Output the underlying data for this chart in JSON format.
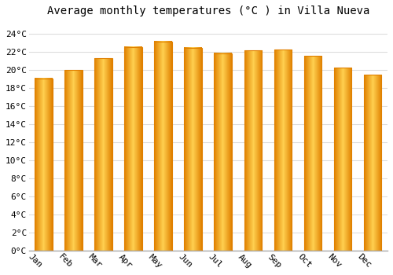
{
  "title": "Average monthly temperatures (°C ) in Villa Nueva",
  "months": [
    "Jan",
    "Feb",
    "Mar",
    "Apr",
    "May",
    "Jun",
    "Jul",
    "Aug",
    "Sep",
    "Oct",
    "Nov",
    "Dec"
  ],
  "values": [
    19.1,
    20.0,
    21.3,
    22.6,
    23.2,
    22.5,
    21.9,
    22.2,
    22.3,
    21.6,
    20.3,
    19.5
  ],
  "bar_color_center": "#FFD050",
  "bar_color_edge": "#E08000",
  "background_color": "#ffffff",
  "grid_color": "#dddddd",
  "ytick_labels": [
    "0°C",
    "2°C",
    "4°C",
    "6°C",
    "8°C",
    "10°C",
    "12°C",
    "14°C",
    "16°C",
    "18°C",
    "20°C",
    "22°C",
    "24°C"
  ],
  "ytick_values": [
    0,
    2,
    4,
    6,
    8,
    10,
    12,
    14,
    16,
    18,
    20,
    22,
    24
  ],
  "ylim": [
    0,
    25.5
  ],
  "title_fontsize": 10,
  "tick_fontsize": 8,
  "font_family": "monospace",
  "bar_width": 0.6,
  "figsize": [
    5.0,
    3.5
  ],
  "dpi": 100
}
